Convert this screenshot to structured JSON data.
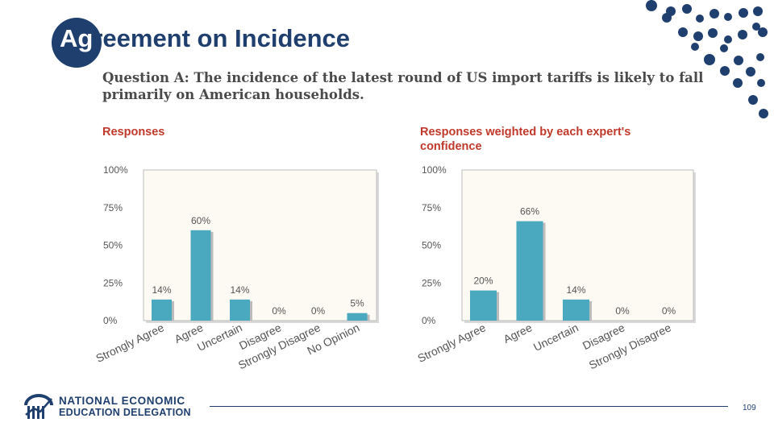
{
  "slide": {
    "title_first": "Ag",
    "title_rest": "reement on Incidence",
    "question": "Question A: The incidence of the latest round of US import tariffs is likely to fall primarily on American households.",
    "page_number": "109"
  },
  "footer": {
    "org_line1": "NATIONAL ECONOMIC",
    "org_line2": "EDUCATION DELEGATION"
  },
  "colors": {
    "bar": "#4aa8bf",
    "accent": "#1f3f6e",
    "heading": "#c0392b",
    "plot_bg": "#fcfaf3"
  },
  "chart_data": [
    {
      "type": "bar",
      "title": "Responses",
      "categories": [
        "Strongly Agree",
        "Agree",
        "Uncertain",
        "Disagree",
        "Strongly Disagree",
        "No Opinion"
      ],
      "values": [
        14,
        60,
        14,
        0,
        0,
        5
      ],
      "value_labels": [
        "14%",
        "60%",
        "14%",
        "0%",
        "0%",
        "5%"
      ],
      "yticks": [
        "0%",
        "25%",
        "50%",
        "75%",
        "100%"
      ],
      "ylim": [
        0,
        100
      ]
    },
    {
      "type": "bar",
      "title": "Responses weighted by each expert's confidence",
      "categories": [
        "Strongly Agree",
        "Agree",
        "Uncertain",
        "Disagree",
        "Strongly Disagree"
      ],
      "values": [
        20,
        66,
        14,
        0,
        0
      ],
      "value_labels": [
        "20%",
        "66%",
        "14%",
        "0%",
        "0%"
      ],
      "yticks": [
        "0%",
        "25%",
        "50%",
        "75%",
        "100%"
      ],
      "ylim": [
        0,
        100
      ]
    }
  ]
}
